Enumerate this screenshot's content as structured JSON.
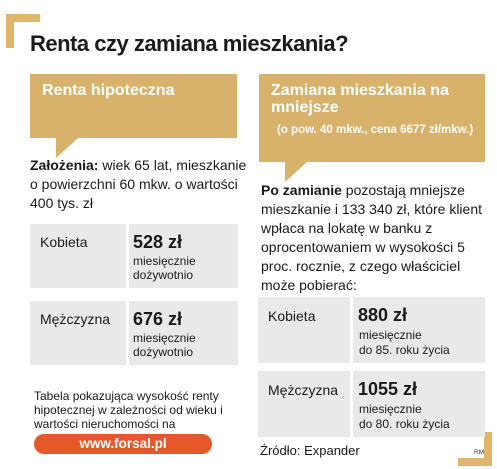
{
  "title": "Renta czy zamiana mieszkania?",
  "left": {
    "tag": "Renta hipoteczna",
    "assumptions_label": "Założenia:",
    "assumptions_text": " wiek 65 lat, mieszkanie o powierzchni 60 mkw. o wartości 400 tys. zł",
    "rows": [
      {
        "label": "Kobieta",
        "value": "528 zł",
        "desc1": "miesięcznie",
        "desc2": "dożywotnio"
      },
      {
        "label": "Mężczyzna",
        "value": "676 zł",
        "desc1": "miesięcznie",
        "desc2": "dożywotnio"
      }
    ],
    "note": "Tabela pokazująca wysokość renty hipotecznej w zależności od wieku i wartości nieruchomości na",
    "link": "www.forsal.pl"
  },
  "right": {
    "tag": "Zamiana mieszkania na mniejsze",
    "tag_sub": "(o pow. 40 mkw., cena 6677 zł/mkw.)",
    "intro_label": "Po zamianie",
    "intro_text": " pozostają mniejsze mieszkanie i 133 340 zł, które klient wpłaca na lokatę w banku z oprocentowaniem w wysokości 5 proc. rocznie, z czego właściciel może pobierać:",
    "rows": [
      {
        "label": "Kobieta",
        "value": "880 zł",
        "desc1": "miesięcznie",
        "desc2": "do 85. roku życia"
      },
      {
        "label": "Mężczyzna",
        "value": "1055 zł",
        "desc1": "miesięcznie",
        "desc2": "do 80. roku życia"
      }
    ],
    "source": "Źródło: Expander"
  },
  "initials": "RM",
  "colors": {
    "accent": "#d8b26a",
    "box": "#e9e9e9",
    "link": "#e6582a"
  }
}
